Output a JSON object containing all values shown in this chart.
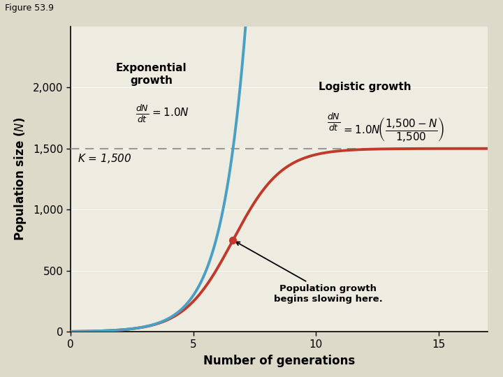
{
  "title": "Figure 53.9",
  "xlabel": "Number of generations",
  "xlim": [
    0,
    17
  ],
  "ylim": [
    0,
    2500
  ],
  "yticks": [
    0,
    500,
    1000,
    1500,
    2000
  ],
  "xticks": [
    0,
    5,
    10,
    15
  ],
  "K": 1500,
  "r": 1.0,
  "N0": 2,
  "t_max_exp": 7.62,
  "t_max_log": 17,
  "outer_bg": "#dddaca",
  "plot_bg": "#eeece0",
  "exp_color": "#4a9fc4",
  "log_color": "#c0392b",
  "dashed_color": "#999999",
  "grid_color": "#ffffff"
}
